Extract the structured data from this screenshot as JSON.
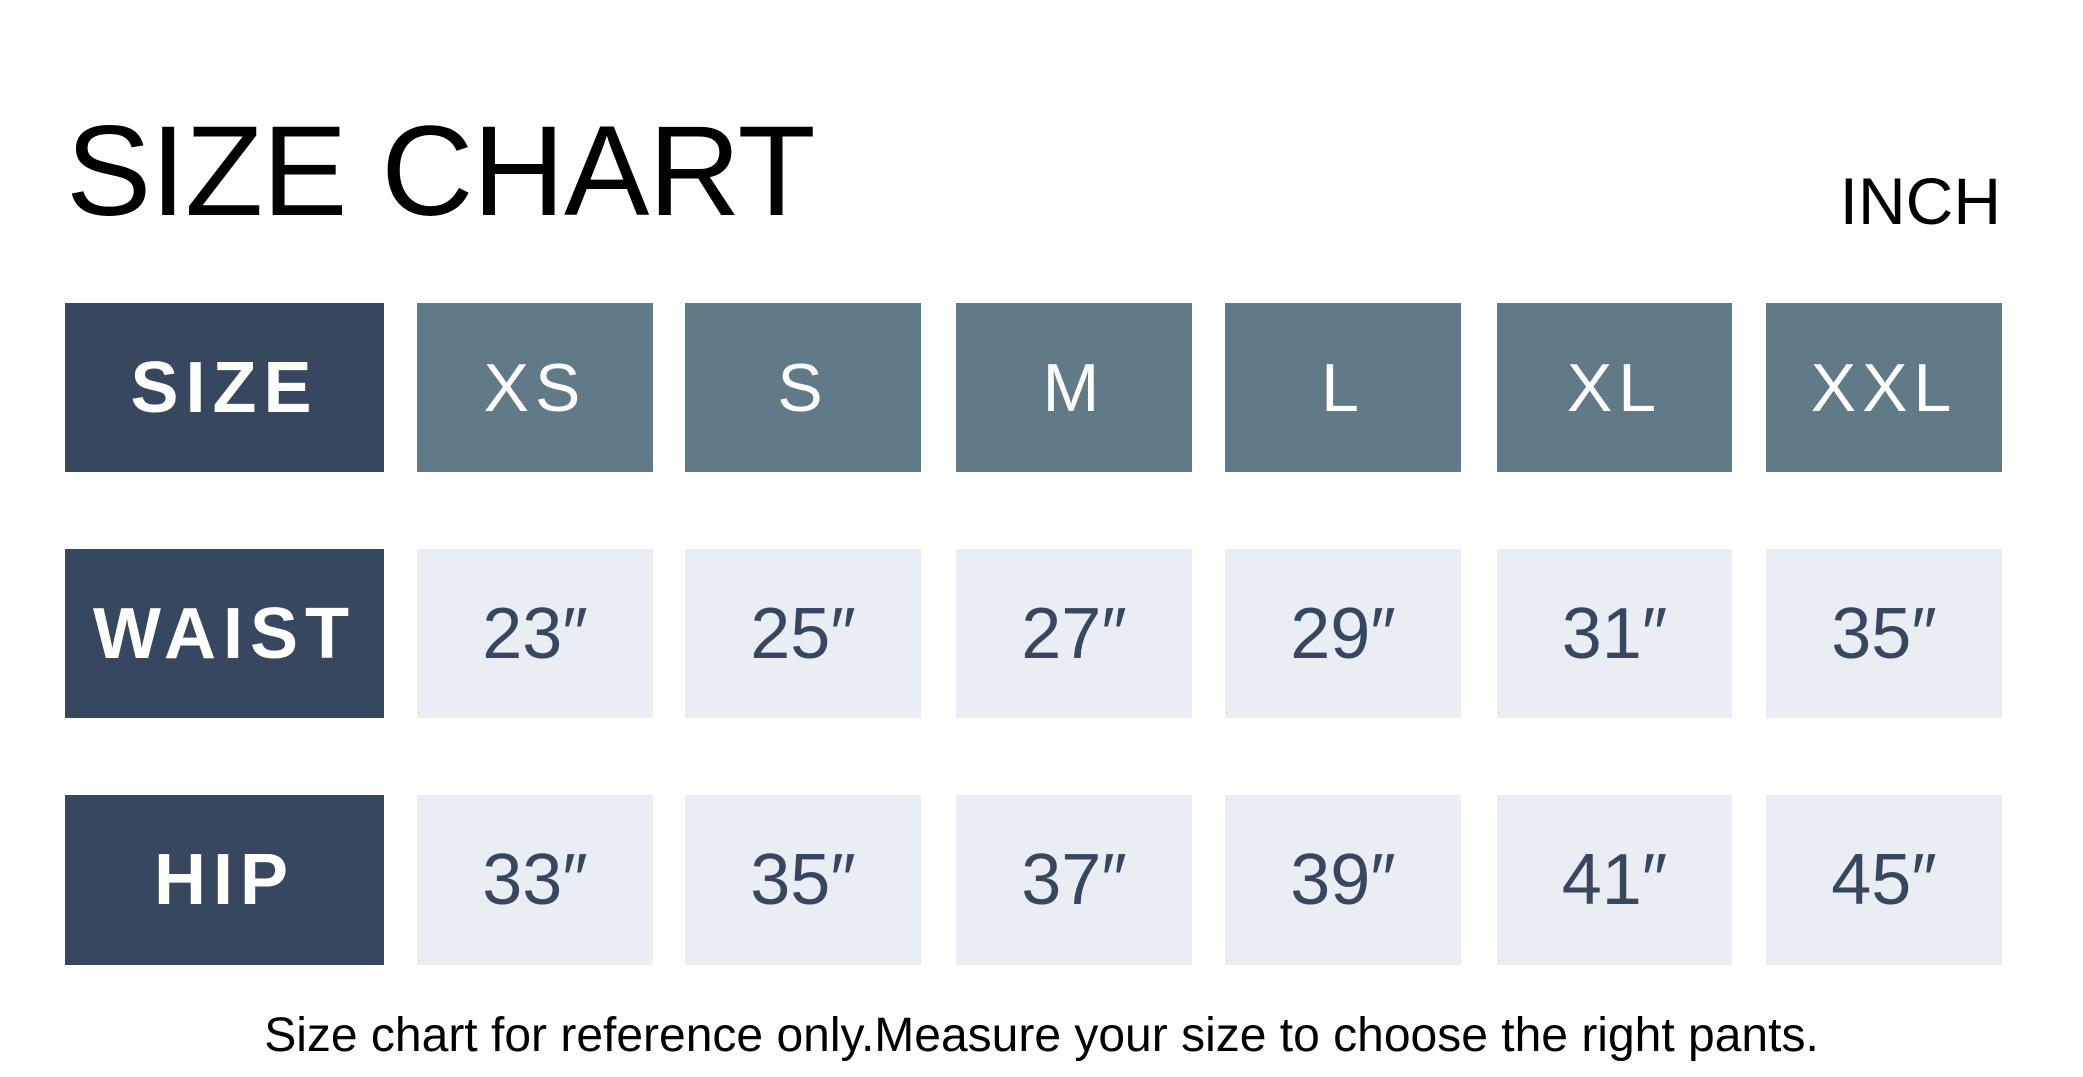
{
  "title": "SIZE CHART",
  "unit": "INCH",
  "colors": {
    "row_header": "#37475f",
    "size_header": "#617a87",
    "value_cell": "#e8eef3",
    "value_text": "#37475f"
  },
  "table": {
    "row_labels": [
      "SIZE",
      "WAIST",
      "HIP"
    ],
    "sizes": [
      "XS",
      "S",
      "M",
      "L",
      "XL",
      "XXL"
    ],
    "waist": [
      "23″",
      "25″",
      "27″",
      "29″",
      "31″",
      "35″"
    ],
    "hip": [
      "33″",
      "35″",
      "37″",
      "39″",
      "41″",
      "45″"
    ]
  },
  "footer": "Size chart for reference only.Measure your size to choose the right pants."
}
